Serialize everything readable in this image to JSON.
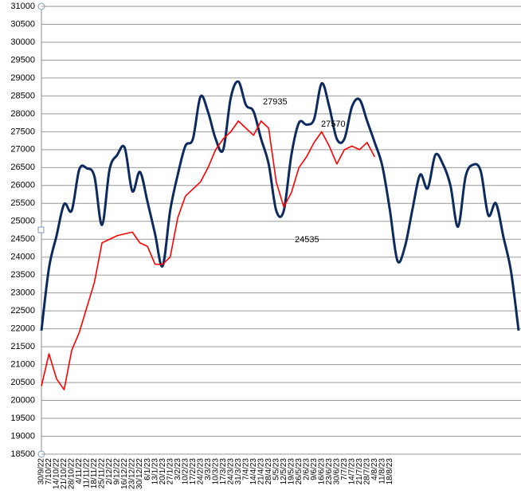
{
  "chart_data": {
    "type": "line",
    "categories": [
      "30/9/22",
      "7/10/22",
      "14/10/22",
      "21/10/22",
      "28/10/22",
      "4/11/22",
      "11/11/22",
      "18/11/22",
      "25/11/22",
      "2/12/22",
      "9/12/22",
      "16/12/22",
      "23/12/22",
      "30/12/22",
      "6/1/23",
      "13/1/23",
      "20/1/23",
      "27/1/23",
      "3/2/23",
      "10/2/23",
      "17/2/23",
      "24/2/23",
      "3/3/23",
      "10/3/23",
      "17/3/23",
      "24/3/23",
      "31/3/23",
      "7/4/23",
      "14/4/23",
      "21/4/23",
      "28/4/23",
      "5/5/23",
      "12/5/23",
      "19/5/23",
      "26/5/23",
      "2/6/23",
      "9/6/23",
      "16/6/23",
      "23/6/23",
      "30/6/23",
      "7/7/23",
      "14/7/23",
      "21/7/23",
      "28/7/23",
      "4/8/23",
      "11/8/23",
      "18/8/23",
      null,
      null,
      null,
      null,
      null,
      null,
      null,
      null,
      null,
      null,
      null,
      null,
      null,
      null,
      null,
      null,
      null
    ],
    "series": [
      {
        "color": "#0d2a5e",
        "values": [
          21950,
          23700,
          24600,
          25480,
          25300,
          26450,
          26480,
          26250,
          24900,
          26450,
          26850,
          27050,
          25840,
          26380,
          25550,
          24650,
          23750,
          25300,
          26300,
          27100,
          27300,
          28480,
          28050,
          27300,
          27000,
          28450,
          28900,
          28250,
          28070,
          27300,
          26600,
          25300,
          25300,
          26850,
          27750,
          27700,
          27850,
          28850,
          28200,
          27300,
          27300,
          28200,
          28400,
          27800,
          27200,
          26550,
          25320,
          23900,
          24300,
          25350,
          26300,
          25920,
          26850,
          26600,
          26000,
          24850,
          26250,
          26580,
          26400,
          25170,
          25500,
          24560,
          23600,
          21950
        ]
      },
      {
        "color": "#ff0000",
        "values": [
          20400,
          21300,
          20600,
          20300,
          21400,
          21900,
          22600,
          23300,
          24400,
          24500,
          24600,
          24650,
          24700,
          24400,
          24300,
          23800,
          23800,
          24000,
          25100,
          25700,
          25900,
          26100,
          26500,
          27000,
          27300,
          27500,
          27800,
          27600,
          27400,
          27800,
          27600,
          26100,
          25400,
          25800,
          26500,
          26800,
          27200,
          27500,
          27100,
          26600,
          27000,
          27100,
          27000,
          27200,
          26800,
          null,
          null,
          null,
          null,
          null,
          null,
          null,
          null,
          null,
          null,
          null,
          null,
          null,
          null,
          null,
          null,
          null,
          null,
          null
        ]
      }
    ],
    "annotations": [
      "27935",
      "27570",
      "24535"
    ],
    "ylim": [
      18500,
      31000
    ],
    "yticks": [
      18500,
      19000,
      19500,
      20000,
      20500,
      21000,
      21500,
      22000,
      22500,
      23000,
      23500,
      24000,
      24500,
      25000,
      25500,
      26000,
      26500,
      27000,
      27500,
      28000,
      28500,
      29000,
      29500,
      30000,
      30500,
      31000
    ],
    "grid": true
  }
}
